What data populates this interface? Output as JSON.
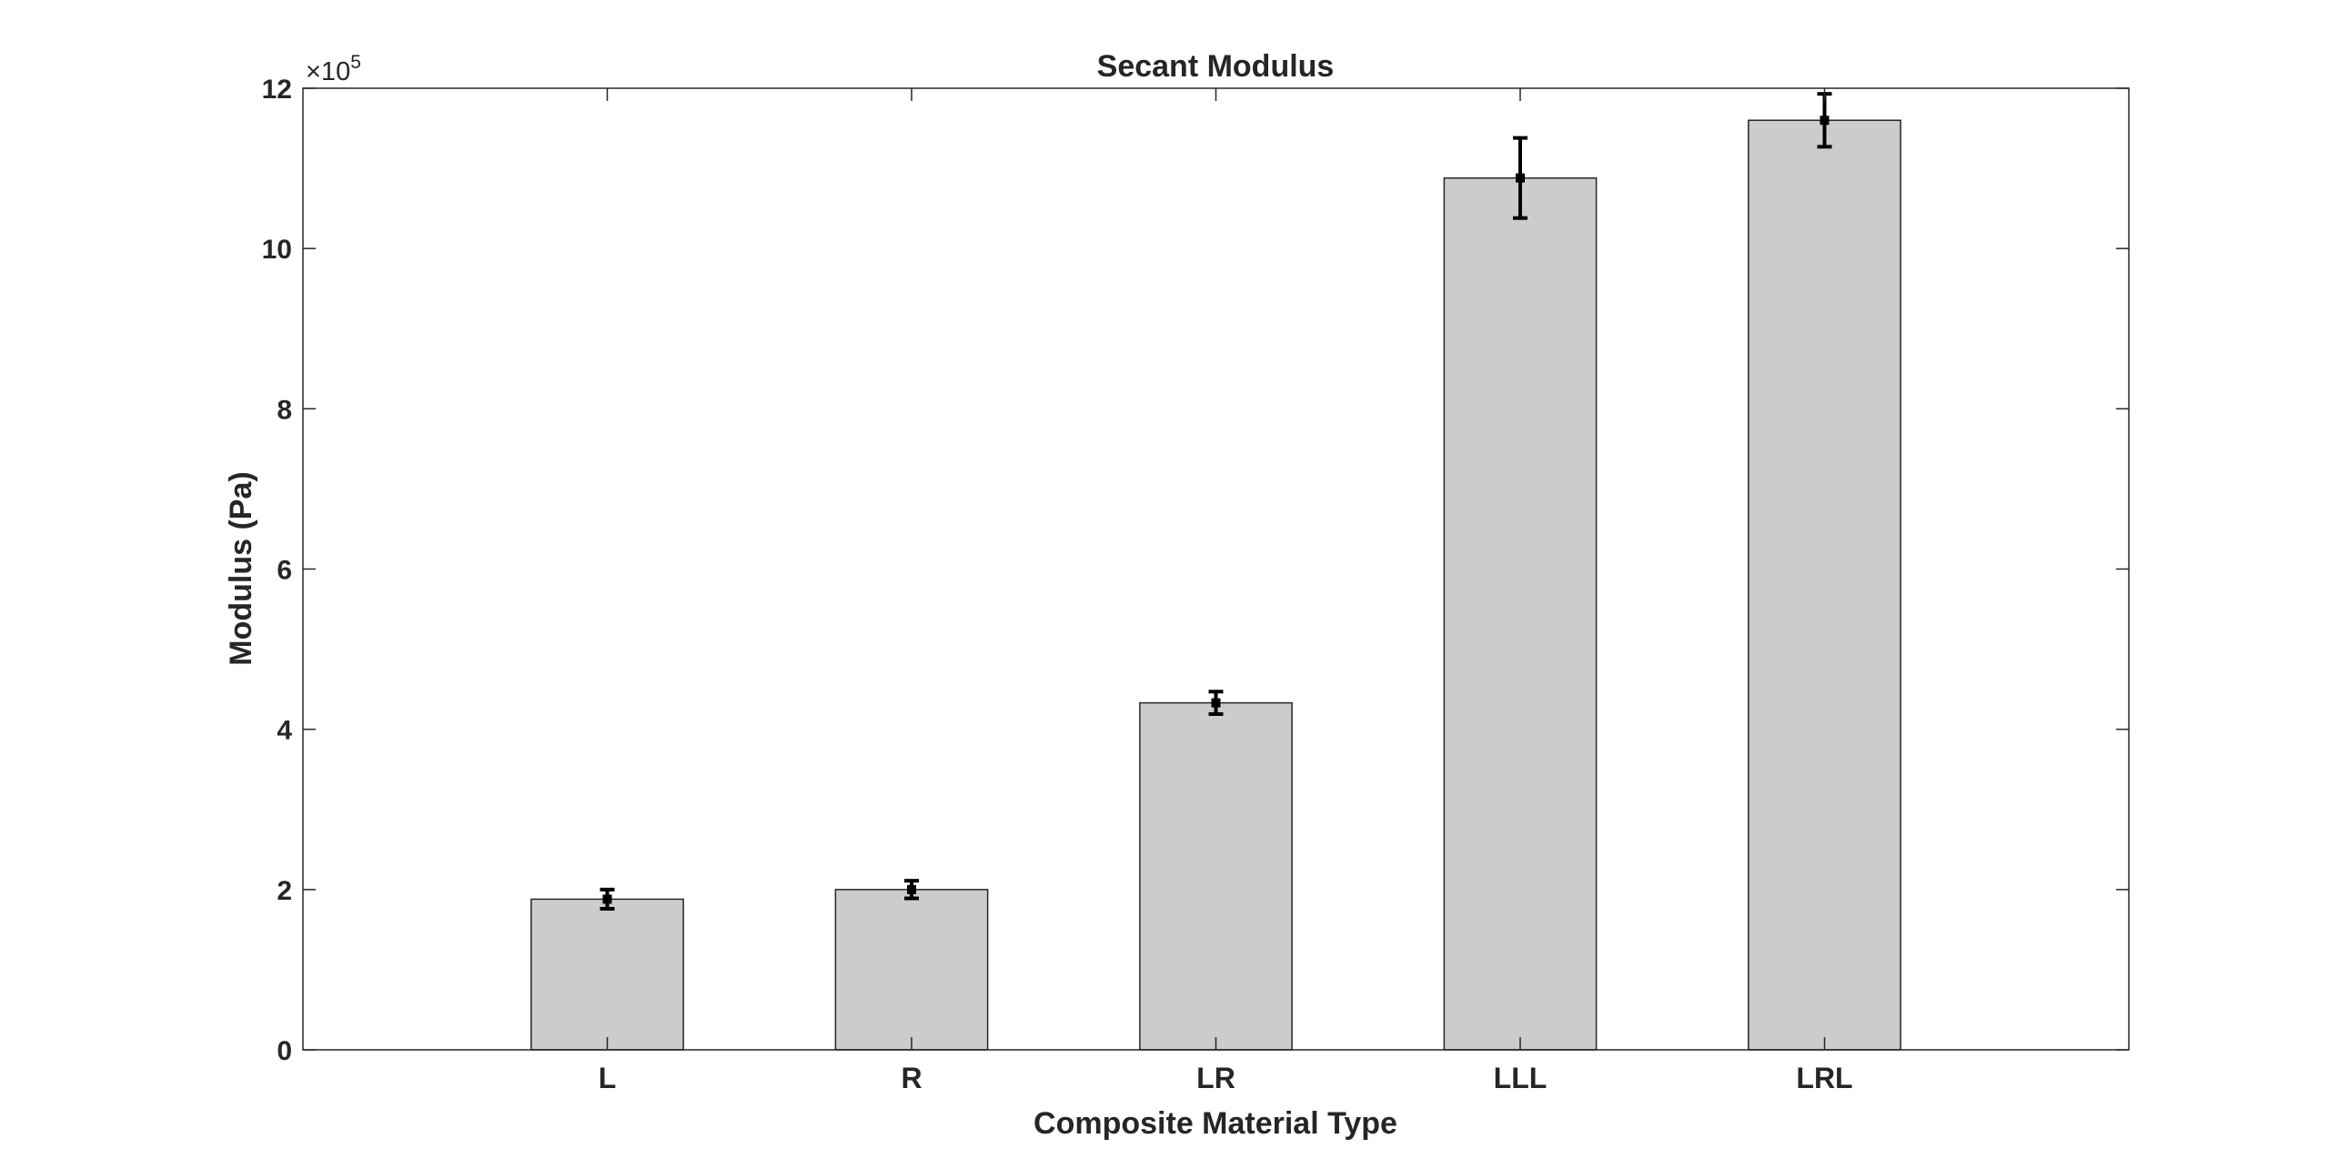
{
  "chart_data": {
    "type": "bar",
    "title": "Secant Modulus",
    "xlabel": "Composite Material Type",
    "ylabel": "Modulus (Pa)",
    "categories": [
      "L",
      "R",
      "LR",
      "LLL",
      "LRL"
    ],
    "values": [
      188000,
      200000,
      433000,
      1088000,
      1160000
    ],
    "errors": [
      12000,
      11000,
      14000,
      50000,
      33000
    ],
    "ylim": [
      0,
      1200000
    ],
    "yticks": [
      0,
      2,
      4,
      6,
      8,
      10,
      12
    ],
    "y_tick_scale": 100000,
    "y_exponent": {
      "prefix": "×10",
      "power": "5"
    },
    "bar_color": "#cccccc",
    "bar_edge_color": "#262626",
    "errorbar_color": "#000000",
    "grid": false,
    "legend": "none"
  }
}
